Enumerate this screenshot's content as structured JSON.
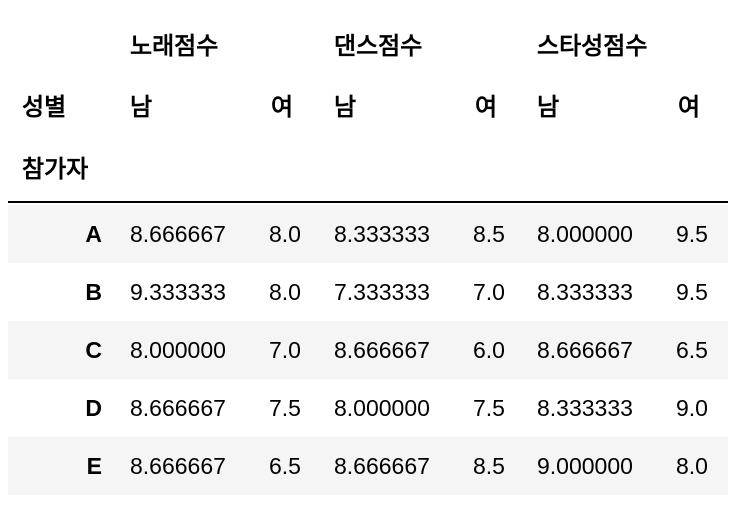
{
  "columns": {
    "groups": [
      "노래점수",
      "댄스점수",
      "스타성점수"
    ],
    "level_name": "성별",
    "sub": [
      "남",
      "여",
      "남",
      "여",
      "남",
      "여"
    ]
  },
  "index_name": "참가자",
  "rows": [
    {
      "label": "A",
      "values": [
        "8.666667",
        "8.0",
        "8.333333",
        "8.5",
        "8.000000",
        "9.5"
      ]
    },
    {
      "label": "B",
      "values": [
        "9.333333",
        "8.0",
        "7.333333",
        "7.0",
        "8.333333",
        "9.5"
      ]
    },
    {
      "label": "C",
      "values": [
        "8.000000",
        "7.0",
        "8.666667",
        "6.0",
        "8.666667",
        "6.5"
      ]
    },
    {
      "label": "D",
      "values": [
        "8.666667",
        "7.5",
        "8.000000",
        "7.5",
        "8.333333",
        "9.0"
      ]
    },
    {
      "label": "E",
      "values": [
        "8.666667",
        "6.5",
        "8.666667",
        "8.5",
        "9.000000",
        "8.0"
      ]
    }
  ]
}
